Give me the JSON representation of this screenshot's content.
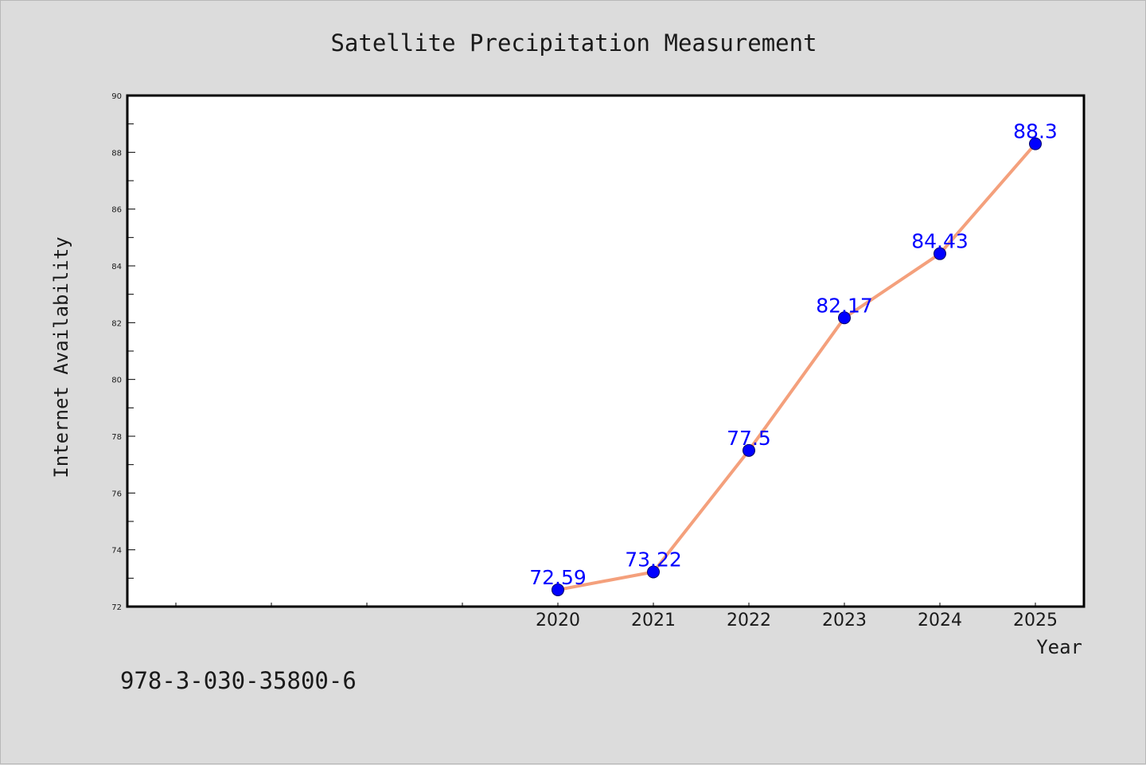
{
  "chart_data": {
    "type": "line",
    "title": "Satellite Precipitation Measurement",
    "xlabel": "Year",
    "ylabel": "Internet Availability",
    "ylim": [
      72,
      90
    ],
    "y_ticks": [
      72,
      74,
      76,
      78,
      80,
      82,
      84,
      86,
      88,
      90
    ],
    "x": [
      2020,
      2021,
      2022,
      2023,
      2024,
      2025
    ],
    "x_tick_labels": [
      "2020",
      "2021",
      "2022",
      "2023",
      "2024",
      "2025"
    ],
    "series": [
      {
        "values": [
          72.59,
          73.22,
          77.5,
          82.17,
          84.43,
          88.3
        ],
        "data_labels": [
          "72.59",
          "73.22",
          "77.5",
          "82.17",
          "84.43",
          "88.3"
        ],
        "line_color": "#f4a07c",
        "marker_color": "#0000ff"
      }
    ],
    "grid": false,
    "legend": "none"
  },
  "footer": {
    "isbn": "978-3-030-35800-6"
  },
  "colors": {
    "background": "#dcdcdc",
    "plot_area": "#ffffff",
    "axis": "#000000",
    "line": "#f4a07c",
    "marker": "#0000ff",
    "data_label": "#0000ff"
  }
}
